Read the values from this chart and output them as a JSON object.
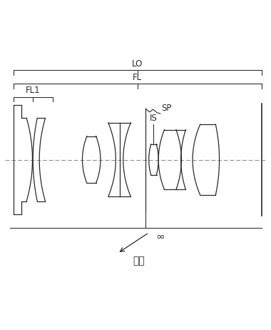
{
  "bg_color": "#ffffff",
  "line_color": "#2a2a2a",
  "dash_color": "#888888",
  "figsize": [
    3.8,
    4.62
  ],
  "dpi": 100,
  "labels": {
    "LO": "LO",
    "FL": "FL",
    "FL1": "FL1",
    "SP": "SP",
    "IS": "IS",
    "infinity": "∞",
    "closeup": "至近"
  },
  "xlim": [
    0,
    10
  ],
  "ylim": [
    -4.2,
    3.8
  ]
}
